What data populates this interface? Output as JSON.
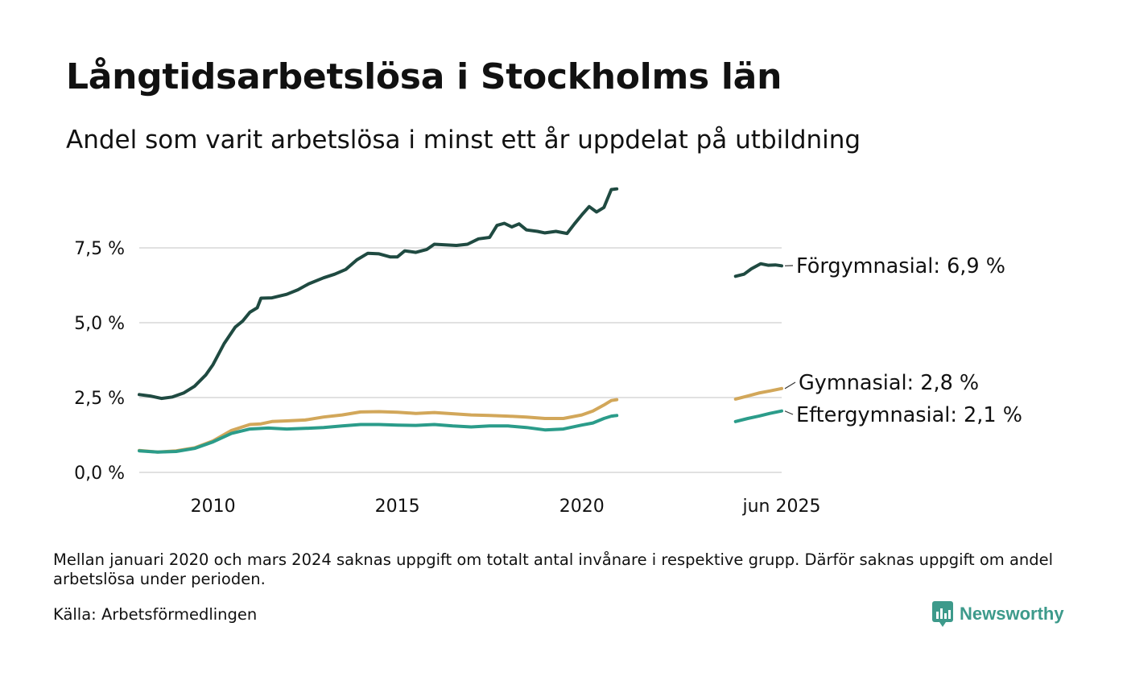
{
  "header": {
    "title": "Långtidsarbetslösa i Stockholms län",
    "subtitle": "Andel som varit arbetslösa i minst ett år uppdelat på utbildning"
  },
  "footer": {
    "note": "Mellan januari 2020 och mars 2024 saknas uppgift om totalt antal invånare i respektive grupp. Därför saknas uppgift om andel arbetslösa under perioden.",
    "source": "Källa: Arbetsförmedlingen",
    "brand": "Newsworthy"
  },
  "colors": {
    "forgymnasial": "#1f4a41",
    "gymnasial": "#d2a75a",
    "eftergymnasial": "#2b9c8a",
    "grid": "#e1e1e1",
    "brand": "#3d9a8b"
  },
  "chart_data": {
    "type": "line",
    "title": "",
    "xlabel": "",
    "ylabel": "",
    "x_ticks": [
      {
        "x": 2010,
        "label": "2010"
      },
      {
        "x": 2015,
        "label": "2015"
      },
      {
        "x": 2020,
        "label": "2020"
      },
      {
        "x": 2025.42,
        "label": "jun 2025"
      }
    ],
    "y_ticks": [
      {
        "y": 0,
        "label": "0,0 %"
      },
      {
        "y": 2.5,
        "label": "2,5 %"
      },
      {
        "y": 5,
        "label": "5,0 %"
      },
      {
        "y": 7.5,
        "label": "7,5 %"
      }
    ],
    "xlim": [
      2008.0,
      2025.42
    ],
    "ylim": [
      0,
      10
    ],
    "grid": true,
    "series": [
      {
        "name": "Förgymnasial",
        "label": "Förgymnasial: 6,9 %",
        "color_key": "forgymnasial",
        "segments": [
          [
            [
              2008.0,
              2.6
            ],
            [
              2008.3,
              2.55
            ],
            [
              2008.6,
              2.47
            ],
            [
              2008.9,
              2.52
            ],
            [
              2009.2,
              2.65
            ],
            [
              2009.5,
              2.88
            ],
            [
              2009.8,
              3.25
            ],
            [
              2010.0,
              3.6
            ],
            [
              2010.3,
              4.3
            ],
            [
              2010.6,
              4.85
            ],
            [
              2010.8,
              5.05
            ],
            [
              2011.0,
              5.35
            ],
            [
              2011.2,
              5.5
            ],
            [
              2011.3,
              5.82
            ],
            [
              2011.6,
              5.83
            ],
            [
              2012.0,
              5.95
            ],
            [
              2012.3,
              6.1
            ],
            [
              2012.6,
              6.3
            ],
            [
              2013.0,
              6.5
            ],
            [
              2013.3,
              6.62
            ],
            [
              2013.6,
              6.78
            ],
            [
              2013.9,
              7.1
            ],
            [
              2014.2,
              7.32
            ],
            [
              2014.5,
              7.3
            ],
            [
              2014.8,
              7.2
            ],
            [
              2015.0,
              7.2
            ],
            [
              2015.2,
              7.4
            ],
            [
              2015.5,
              7.35
            ],
            [
              2015.8,
              7.45
            ],
            [
              2016.0,
              7.62
            ],
            [
              2016.3,
              7.6
            ],
            [
              2016.6,
              7.58
            ],
            [
              2016.9,
              7.62
            ],
            [
              2017.2,
              7.8
            ],
            [
              2017.5,
              7.85
            ],
            [
              2017.7,
              8.25
            ],
            [
              2017.9,
              8.32
            ],
            [
              2018.1,
              8.2
            ],
            [
              2018.3,
              8.3
            ],
            [
              2018.5,
              8.1
            ],
            [
              2018.8,
              8.05
            ],
            [
              2019.0,
              8.0
            ],
            [
              2019.3,
              8.05
            ],
            [
              2019.6,
              7.98
            ],
            [
              2019.8,
              8.3
            ],
            [
              2020.0,
              8.6
            ],
            [
              2020.2,
              8.88
            ],
            [
              2020.4,
              8.7
            ],
            [
              2020.6,
              8.85
            ],
            [
              2020.8,
              9.45
            ],
            [
              2020.95,
              9.47
            ]
          ],
          [
            [
              2024.17,
              6.55
            ],
            [
              2024.4,
              6.62
            ],
            [
              2024.6,
              6.8
            ],
            [
              2024.85,
              6.97
            ],
            [
              2025.05,
              6.92
            ],
            [
              2025.25,
              6.93
            ],
            [
              2025.42,
              6.9
            ]
          ]
        ]
      },
      {
        "name": "Gymnasial",
        "label": "Gymnasial: 2,8 %",
        "color_key": "gymnasial",
        "segments": [
          [
            [
              2008.0,
              0.73
            ],
            [
              2008.5,
              0.68
            ],
            [
              2009.0,
              0.72
            ],
            [
              2009.5,
              0.82
            ],
            [
              2010.0,
              1.05
            ],
            [
              2010.5,
              1.4
            ],
            [
              2011.0,
              1.6
            ],
            [
              2011.3,
              1.62
            ],
            [
              2011.6,
              1.7
            ],
            [
              2012.0,
              1.72
            ],
            [
              2012.5,
              1.75
            ],
            [
              2013.0,
              1.85
            ],
            [
              2013.5,
              1.92
            ],
            [
              2014.0,
              2.02
            ],
            [
              2014.5,
              2.03
            ],
            [
              2015.0,
              2.01
            ],
            [
              2015.5,
              1.97
            ],
            [
              2016.0,
              2.0
            ],
            [
              2016.5,
              1.96
            ],
            [
              2017.0,
              1.92
            ],
            [
              2017.5,
              1.9
            ],
            [
              2018.0,
              1.88
            ],
            [
              2018.5,
              1.85
            ],
            [
              2019.0,
              1.8
            ],
            [
              2019.5,
              1.8
            ],
            [
              2020.0,
              1.92
            ],
            [
              2020.3,
              2.05
            ],
            [
              2020.6,
              2.25
            ],
            [
              2020.8,
              2.4
            ],
            [
              2020.95,
              2.43
            ]
          ],
          [
            [
              2024.17,
              2.45
            ],
            [
              2024.5,
              2.55
            ],
            [
              2024.8,
              2.65
            ],
            [
              2025.1,
              2.72
            ],
            [
              2025.42,
              2.8
            ]
          ]
        ]
      },
      {
        "name": "Eftergymnasial",
        "label": "Eftergymnasial: 2,1 %",
        "color_key": "eftergymnasial",
        "segments": [
          [
            [
              2008.0,
              0.72
            ],
            [
              2008.5,
              0.68
            ],
            [
              2009.0,
              0.7
            ],
            [
              2009.5,
              0.8
            ],
            [
              2010.0,
              1.02
            ],
            [
              2010.5,
              1.3
            ],
            [
              2011.0,
              1.45
            ],
            [
              2011.5,
              1.48
            ],
            [
              2012.0,
              1.45
            ],
            [
              2012.5,
              1.47
            ],
            [
              2013.0,
              1.5
            ],
            [
              2013.5,
              1.55
            ],
            [
              2014.0,
              1.6
            ],
            [
              2014.5,
              1.6
            ],
            [
              2015.0,
              1.58
            ],
            [
              2015.5,
              1.57
            ],
            [
              2016.0,
              1.6
            ],
            [
              2016.5,
              1.55
            ],
            [
              2017.0,
              1.52
            ],
            [
              2017.5,
              1.55
            ],
            [
              2018.0,
              1.55
            ],
            [
              2018.5,
              1.5
            ],
            [
              2019.0,
              1.42
            ],
            [
              2019.5,
              1.45
            ],
            [
              2020.0,
              1.58
            ],
            [
              2020.3,
              1.65
            ],
            [
              2020.6,
              1.8
            ],
            [
              2020.8,
              1.88
            ],
            [
              2020.95,
              1.9
            ]
          ],
          [
            [
              2024.17,
              1.7
            ],
            [
              2024.5,
              1.8
            ],
            [
              2024.8,
              1.88
            ],
            [
              2025.1,
              1.97
            ],
            [
              2025.42,
              2.05
            ]
          ]
        ]
      }
    ]
  }
}
